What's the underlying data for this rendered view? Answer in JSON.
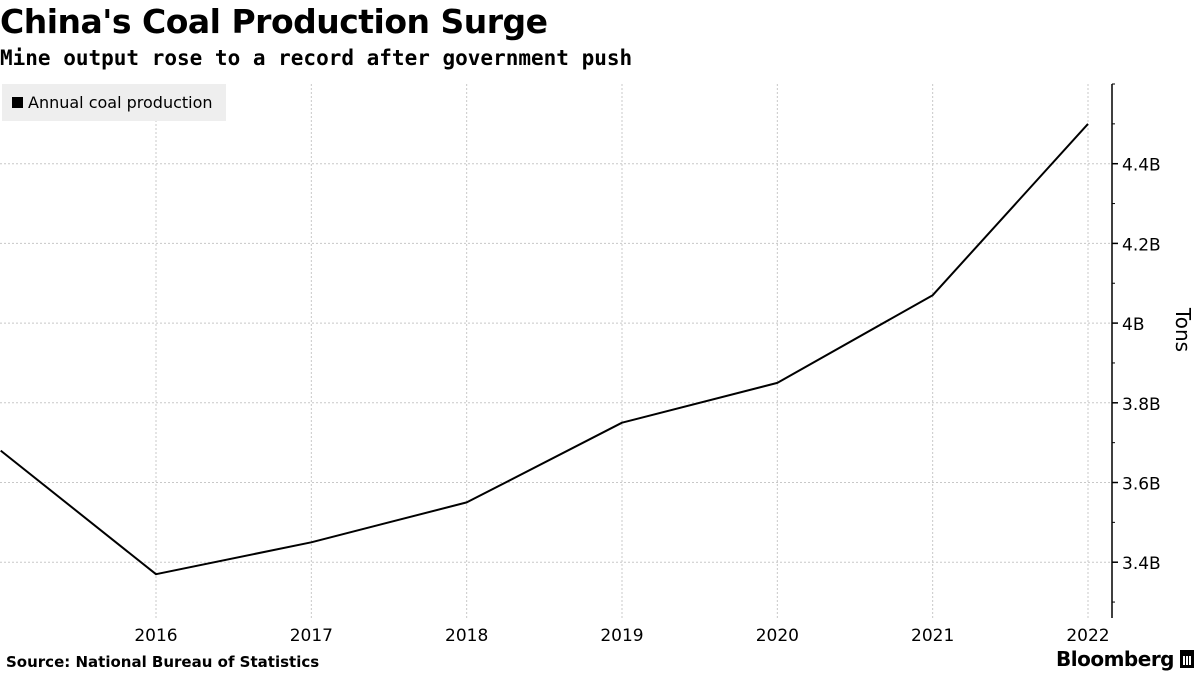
{
  "title": "China's Coal Production Surge",
  "subtitle": "Mine output rose to a record after government push",
  "legend_label": "Annual coal production",
  "source": "Source: National Bureau of Statistics",
  "brand": "Bloomberg",
  "chart_data": {
    "type": "line",
    "title": "China's Coal Production Surge",
    "subtitle": "Mine output rose to a record after government push",
    "xlabel": "",
    "ylabel": "Tons",
    "x": [
      2015,
      2016,
      2017,
      2018,
      2019,
      2020,
      2021,
      2022
    ],
    "x_tick_labels": [
      "2016",
      "2017",
      "2018",
      "2019",
      "2020",
      "2021",
      "2022"
    ],
    "series": [
      {
        "name": "Annual coal production",
        "values": [
          3.68,
          3.37,
          3.45,
          3.55,
          3.75,
          3.85,
          4.07,
          4.5
        ],
        "color": "#000000"
      }
    ],
    "ylim": [
      3.26,
      4.6
    ],
    "y_ticks": [
      3.4,
      3.6,
      3.8,
      4.0,
      4.2,
      4.4
    ],
    "y_tick_labels": [
      "3.4B",
      "3.6B",
      "3.8B",
      "4B",
      "4.2B",
      "4.4B"
    ],
    "y_axis_position": "right",
    "legend_position": "top-left",
    "grid": true,
    "unit": "billion tons"
  }
}
